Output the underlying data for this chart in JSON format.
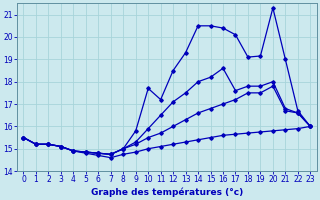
{
  "xlabel": "Graphe des températures (°c)",
  "bg_color": "#cce9ee",
  "grid_color": "#a8d4da",
  "line_color": "#0000bb",
  "spine_color": "#6090a0",
  "hours": [
    0,
    1,
    2,
    3,
    4,
    5,
    6,
    7,
    8,
    9,
    10,
    11,
    12,
    13,
    14,
    15,
    16,
    17,
    18,
    19,
    20,
    21,
    22,
    23
  ],
  "series1_min": [
    15.5,
    15.2,
    15.2,
    15.1,
    14.9,
    14.8,
    14.7,
    14.6,
    14.75,
    14.85,
    15.0,
    15.1,
    15.2,
    15.3,
    15.4,
    15.5,
    15.6,
    15.65,
    15.7,
    15.75,
    15.8,
    15.85,
    15.9,
    16.0
  ],
  "series2_slow": [
    15.5,
    15.2,
    15.2,
    15.1,
    14.9,
    14.85,
    14.8,
    14.75,
    15.0,
    15.2,
    15.5,
    15.7,
    16.0,
    16.3,
    16.6,
    16.8,
    17.0,
    17.2,
    17.5,
    17.5,
    17.8,
    16.7,
    16.6,
    16.0
  ],
  "series3_mid": [
    15.5,
    15.2,
    15.2,
    15.1,
    14.9,
    14.85,
    14.8,
    14.75,
    15.0,
    15.3,
    15.9,
    16.5,
    17.1,
    17.5,
    18.0,
    18.2,
    18.6,
    17.6,
    17.8,
    17.8,
    18.0,
    16.8,
    16.6,
    16.0
  ],
  "series4_high": [
    15.5,
    15.2,
    15.2,
    15.1,
    14.9,
    14.85,
    14.8,
    14.75,
    15.0,
    15.8,
    17.7,
    17.2,
    18.5,
    19.3,
    20.5,
    20.5,
    20.4,
    20.1,
    19.1,
    19.15,
    21.3,
    19.0,
    16.7,
    16.0
  ],
  "ylim": [
    14,
    21.5
  ],
  "xlim": [
    -0.5,
    23.5
  ],
  "yticks": [
    14,
    15,
    16,
    17,
    18,
    19,
    20,
    21
  ],
  "xticks": [
    0,
    1,
    2,
    3,
    4,
    5,
    6,
    7,
    8,
    9,
    10,
    11,
    12,
    13,
    14,
    15,
    16,
    17,
    18,
    19,
    20,
    21,
    22,
    23
  ],
  "xlabel_fontsize": 6.5,
  "tick_fontsize": 5.5
}
